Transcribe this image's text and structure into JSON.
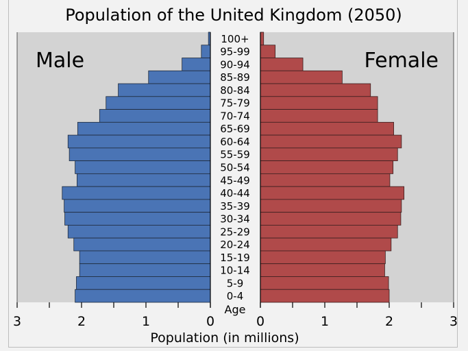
{
  "chart_data": {
    "type": "bar",
    "orientation": "horizontal",
    "layout": "population-pyramid",
    "title": "Population of the United Kingdom (2050)",
    "xlabel": "Population (in millions)",
    "ylabel": "Age",
    "xlim": [
      0,
      3
    ],
    "x_ticks": [
      "3",
      "2",
      "1",
      "0",
      "0",
      "1",
      "2",
      "3"
    ],
    "categories": [
      "100+",
      "95-99",
      "90-94",
      "85-89",
      "80-84",
      "75-79",
      "70-74",
      "65-69",
      "60-64",
      "55-59",
      "50-54",
      "45-49",
      "40-44",
      "35-39",
      "30-34",
      "25-29",
      "20-24",
      "15-19",
      "10-14",
      "5-9",
      "0-4"
    ],
    "series": [
      {
        "name": "Male",
        "color": "#4a74b5",
        "values": [
          0.03,
          0.14,
          0.44,
          0.96,
          1.43,
          1.62,
          1.72,
          2.06,
          2.21,
          2.19,
          2.1,
          2.07,
          2.3,
          2.27,
          2.26,
          2.21,
          2.12,
          2.03,
          2.03,
          2.08,
          2.1
        ]
      },
      {
        "name": "Female",
        "color": "#b04a4a",
        "values": [
          0.05,
          0.23,
          0.66,
          1.27,
          1.71,
          1.82,
          1.82,
          2.07,
          2.19,
          2.13,
          2.06,
          2.01,
          2.23,
          2.19,
          2.18,
          2.13,
          2.03,
          1.94,
          1.93,
          1.99,
          2.0
        ]
      }
    ],
    "plot_background": "#d3d3d3",
    "grid": false
  }
}
